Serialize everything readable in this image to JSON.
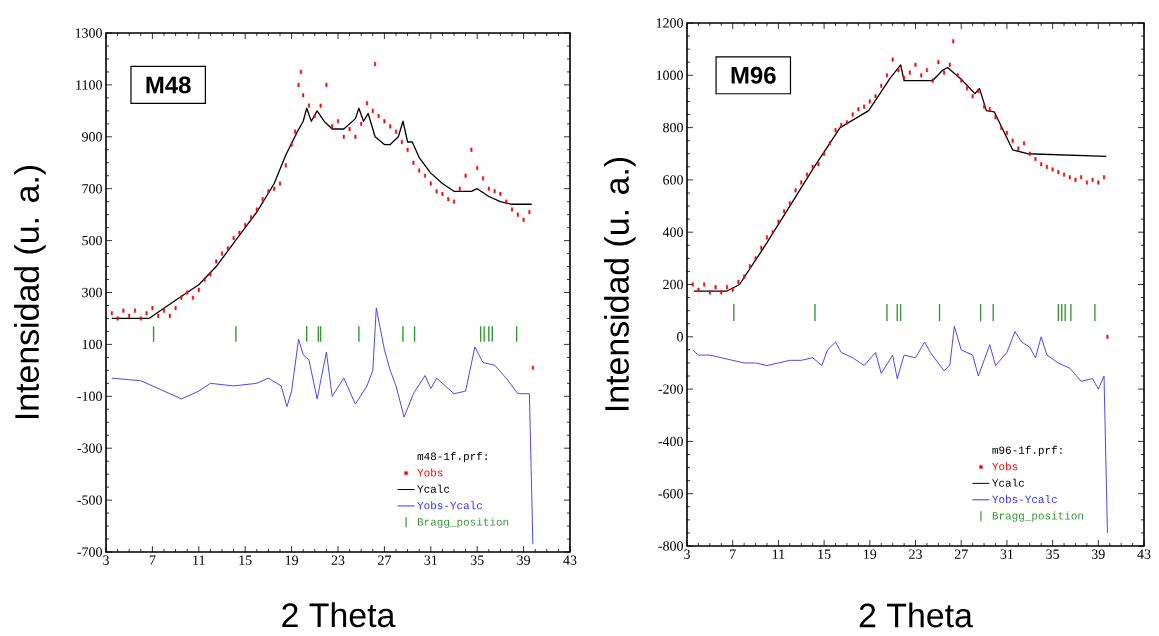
{
  "chart_data": [
    {
      "type": "line",
      "xlabel": "2 Theta",
      "ylabel": "Intensidad (u. a.)",
      "annotations": [
        "M48"
      ],
      "legend_title": "m48-1f.prf:",
      "legend": "bottom right",
      "xlim": [
        3,
        43
      ],
      "ylim": [
        -700,
        1300
      ],
      "xticks": [
        3,
        7,
        11,
        15,
        19,
        23,
        27,
        31,
        35,
        39,
        43
      ],
      "yticks": [
        -700,
        -500,
        -300,
        -100,
        100,
        300,
        500,
        700,
        900,
        1100,
        1300
      ],
      "series": [
        {
          "name": "Yobs",
          "type": "scatter",
          "marker": "square",
          "color": "#ff0000",
          "x": [
            3.5,
            4,
            4.5,
            5,
            5.5,
            6,
            6.5,
            7,
            7.5,
            8,
            8.5,
            9,
            9.5,
            10,
            10.5,
            11,
            11.5,
            12,
            12.5,
            13,
            13.5,
            14,
            14.5,
            15,
            15.5,
            16,
            16.5,
            17,
            17.5,
            18,
            18.5,
            19,
            19.3,
            19.6,
            19.8,
            20,
            20.5,
            21,
            21.5,
            22,
            22.5,
            23,
            23.5,
            24,
            24.5,
            25,
            25.5,
            26,
            26.2,
            26.5,
            27,
            27.5,
            28,
            28.5,
            29,
            29.5,
            30,
            30.5,
            31,
            31.5,
            32,
            32.5,
            33,
            33.5,
            34,
            34.5,
            35,
            35.5,
            36,
            36.5,
            37,
            37.5,
            38,
            38.5,
            39,
            39.5,
            39.8
          ],
          "values": [
            220,
            200,
            230,
            210,
            230,
            200,
            220,
            240,
            210,
            230,
            210,
            240,
            280,
            300,
            280,
            310,
            350,
            370,
            420,
            450,
            470,
            510,
            530,
            560,
            590,
            620,
            660,
            690,
            700,
            720,
            790,
            870,
            920,
            1100,
            1150,
            1060,
            1020,
            980,
            1020,
            1100,
            940,
            960,
            900,
            930,
            900,
            950,
            1030,
            1000,
            1180,
            980,
            960,
            940,
            920,
            880,
            850,
            800,
            770,
            750,
            720,
            690,
            680,
            660,
            650,
            700,
            750,
            850,
            780,
            740,
            700,
            690,
            680,
            650,
            620,
            600,
            580,
            610,
            10
          ]
        },
        {
          "name": "Ycalc",
          "color": "#000000",
          "x": [
            3.5,
            6.7,
            9,
            11,
            12.5,
            14,
            16,
            17.5,
            18.5,
            19.5,
            20,
            20.3,
            20.7,
            21.2,
            21.8,
            22.5,
            23.5,
            24.5,
            24.8,
            25.2,
            25.6,
            26.2,
            27,
            27.5,
            28.2,
            28.6,
            29,
            29.4,
            30,
            31,
            32,
            33,
            34.5,
            35,
            36,
            37,
            38,
            39.7
          ],
          "values": [
            200,
            200,
            270,
            330,
            400,
            490,
            610,
            720,
            830,
            920,
            960,
            1010,
            960,
            1000,
            960,
            930,
            930,
            970,
            1010,
            960,
            990,
            900,
            870,
            870,
            900,
            960,
            880,
            880,
            820,
            760,
            720,
            690,
            690,
            700,
            670,
            650,
            640,
            640
          ]
        },
        {
          "name": "Yobs-Ycalc",
          "color": "#3333ff",
          "x": [
            3.5,
            6,
            8,
            9.5,
            11,
            12,
            14,
            16,
            17,
            18.1,
            18.6,
            19,
            19.6,
            20,
            20.5,
            21.2,
            22,
            22.5,
            23.5,
            24.5,
            25.5,
            26,
            26.3,
            27,
            27.5,
            28,
            28.7,
            29.5,
            30.5,
            31,
            31.5,
            33,
            34,
            34.8,
            35.5,
            36.5,
            37.5,
            38.5,
            39.5,
            39.8
          ],
          "values": [
            -30,
            -40,
            -80,
            -110,
            -80,
            -50,
            -60,
            -50,
            -30,
            -60,
            -140,
            -80,
            120,
            60,
            40,
            -110,
            70,
            -100,
            -30,
            -130,
            -60,
            0,
            240,
            80,
            0,
            -60,
            -180,
            -90,
            -20,
            -70,
            -30,
            -90,
            -80,
            90,
            30,
            20,
            -30,
            -90,
            -90,
            -670
          ]
        },
        {
          "name": "Bragg_position",
          "type": "bar",
          "color": "#339933",
          "x": [
            7.1,
            14.2,
            20.3,
            21.3,
            21.5,
            24.8,
            28.6,
            29.6,
            35.3,
            35.6,
            36.0,
            36.3,
            38.4
          ],
          "base": [
            110,
            110,
            110,
            110,
            110,
            110,
            110,
            110,
            110,
            110,
            110,
            110,
            110
          ],
          "values": [
            60,
            60,
            60,
            60,
            60,
            60,
            60,
            60,
            60,
            60,
            60,
            60,
            60
          ]
        }
      ]
    },
    {
      "type": "line",
      "xlabel": "2 Theta",
      "ylabel": "Intensidad (u. a.)",
      "annotations": [
        "M96"
      ],
      "legend_title": "m96-1f.prf:",
      "legend": "bottom right",
      "xlim": [
        3,
        43
      ],
      "ylim": [
        -800,
        1200
      ],
      "xticks": [
        3,
        7,
        11,
        15,
        19,
        23,
        27,
        31,
        35,
        39,
        43
      ],
      "yticks": [
        -800,
        -600,
        -400,
        -200,
        0,
        200,
        400,
        600,
        800,
        1000,
        1200
      ],
      "series": [
        {
          "name": "Yobs",
          "type": "scatter",
          "marker": "square",
          "color": "#ff0000",
          "x": [
            3.5,
            4,
            4.5,
            5,
            5.5,
            6,
            6.5,
            7,
            7.5,
            8,
            8.5,
            9,
            9.5,
            10,
            10.5,
            11,
            11.5,
            12,
            12.5,
            13,
            13.5,
            14,
            14.5,
            15,
            15.5,
            16,
            16.5,
            17,
            17.5,
            18,
            18.5,
            19,
            19.5,
            20,
            20.5,
            21,
            21.5,
            22,
            22.5,
            23,
            23.5,
            24,
            24.5,
            25,
            25.5,
            26,
            26.3,
            26.7,
            27,
            27.5,
            28,
            28.5,
            29,
            29.5,
            30,
            30.5,
            31,
            31.5,
            32,
            32.5,
            33,
            33.5,
            34,
            34.5,
            35,
            35.5,
            36,
            36.5,
            37,
            37.5,
            38,
            38.5,
            39,
            39.5,
            39.8
          ],
          "values": [
            200,
            180,
            200,
            170,
            190,
            170,
            190,
            180,
            210,
            230,
            270,
            300,
            340,
            380,
            400,
            440,
            480,
            510,
            560,
            590,
            620,
            650,
            660,
            700,
            740,
            790,
            810,
            820,
            850,
            870,
            880,
            900,
            920,
            960,
            1000,
            1060,
            1020,
            990,
            1010,
            1040,
            1000,
            1020,
            980,
            1050,
            1010,
            1040,
            1130,
            1000,
            980,
            950,
            920,
            940,
            880,
            870,
            840,
            800,
            780,
            750,
            720,
            740,
            700,
            680,
            660,
            650,
            640,
            630,
            620,
            610,
            600,
            610,
            590,
            600,
            590,
            610,
            0
          ]
        },
        {
          "name": "Ycalc",
          "color": "#000000",
          "x": [
            3.6,
            6.5,
            7.6,
            10,
            12,
            14,
            16.4,
            18.9,
            20.8,
            21.7,
            22,
            22.6,
            24.5,
            25.4,
            25.8,
            27,
            28.2,
            28.6,
            29.2,
            29.9,
            31.5,
            32.8,
            39.7
          ],
          "values": [
            175,
            175,
            200,
            360,
            500,
            640,
            800,
            865,
            990,
            1040,
            980,
            980,
            980,
            1020,
            1030,
            985,
            930,
            950,
            865,
            860,
            715,
            700,
            690
          ]
        },
        {
          "name": "Yobs-Ycalc",
          "color": "#3333ff",
          "x": [
            3.5,
            4,
            5,
            6,
            7,
            8,
            9,
            10,
            11,
            12,
            13,
            14,
            14.8,
            15.3,
            16,
            16.5,
            17.5,
            18.5,
            19.5,
            20,
            21,
            21.4,
            22,
            23,
            23.8,
            24.3,
            25.5,
            26,
            26.4,
            27,
            28,
            28.5,
            29.5,
            30,
            31,
            31.7,
            32.3,
            33,
            33.5,
            34,
            34.5,
            35.5,
            36.5,
            37.5,
            38.5,
            39,
            39.5,
            39.8
          ],
          "values": [
            -50,
            -70,
            -70,
            -80,
            -90,
            -100,
            -100,
            -110,
            -100,
            -90,
            -90,
            -80,
            -110,
            -50,
            -20,
            -60,
            -80,
            -110,
            -60,
            -140,
            -70,
            -160,
            -70,
            -80,
            -20,
            -60,
            -130,
            -110,
            40,
            -50,
            -70,
            -150,
            -30,
            -110,
            -60,
            20,
            -20,
            -40,
            -80,
            0,
            -70,
            -100,
            -120,
            -170,
            -160,
            -200,
            -150,
            -750
          ]
        },
        {
          "name": "Bragg_position",
          "type": "bar",
          "color": "#339933",
          "x": [
            7.1,
            14.2,
            20.5,
            21.4,
            21.7,
            25.1,
            28.7,
            29.8,
            35.5,
            35.8,
            36.1,
            36.6,
            38.7
          ],
          "base": [
            60,
            60,
            60,
            60,
            60,
            60,
            60,
            60,
            60,
            60,
            60,
            60,
            60
          ],
          "values": [
            65,
            65,
            65,
            65,
            65,
            65,
            65,
            65,
            65,
            65,
            65,
            65,
            65
          ]
        }
      ]
    }
  ]
}
